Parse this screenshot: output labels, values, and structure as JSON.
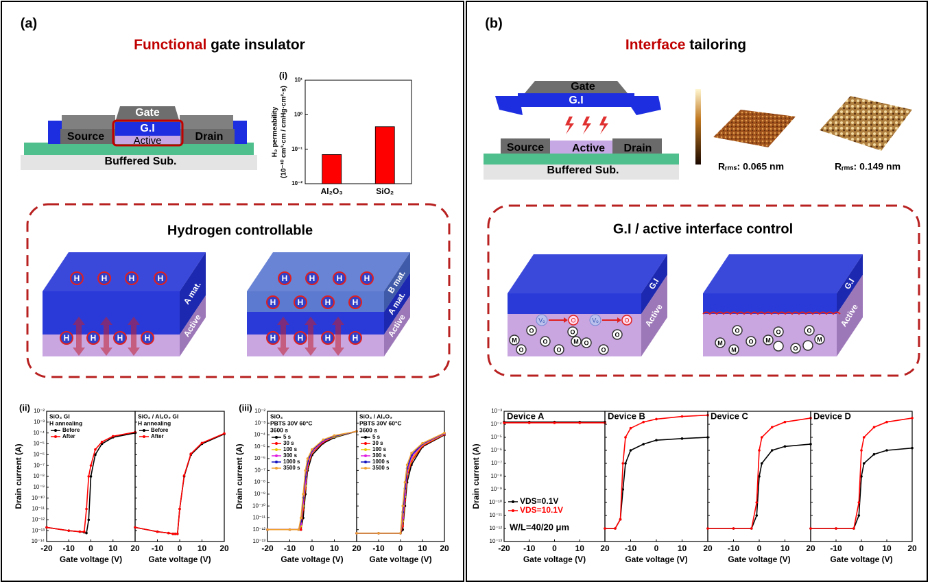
{
  "panel_a": {
    "label": "(a)",
    "title_highlight": "Functional",
    "title_rest": " gate insulator",
    "device": {
      "gate": "Gate",
      "gi": "G.I",
      "source": "Source",
      "active": "Active",
      "drain": "Drain",
      "substrate": "Buffered Sub."
    },
    "bar_chart": {
      "type": "bar",
      "label": "(i)",
      "ylabel_lines": [
        "H₂ permeability",
        "(10⁻¹⁰ cm³·cm / cmHg·cm²·s)"
      ],
      "categories": [
        "Al₂O₃",
        "SiO₂"
      ],
      "values": [
        0.07,
        0.45
      ],
      "color": "#ff0000",
      "log_y": true,
      "ylim": [
        0.01,
        10
      ],
      "yticks": [
        {
          "value": 0.01,
          "label": "10⁻²"
        },
        {
          "value": 0.1,
          "label": "10⁻¹"
        },
        {
          "value": 1,
          "label": "10⁰"
        },
        {
          "value": 10,
          "label": "10¹"
        }
      ]
    },
    "box": {
      "title": "Hydrogen controllable",
      "h": "H",
      "a_mat": "A mat.",
      "b_mat": "B mat.",
      "active": "Active"
    },
    "charts": [
      {
        "type": "line",
        "label": "(ii)",
        "ylabel": "Drain current (A)",
        "xlabel": "Gate voltage (V)",
        "log_y": true,
        "xlim": [
          -20,
          20
        ],
        "xticks": [
          -20,
          -10,
          0,
          10,
          20
        ],
        "ylim": [
          1e-14,
          0.01
        ],
        "yticks": [
          {
            "value": 1e-14,
            "label": "10⁻¹⁴"
          },
          {
            "value": 1e-13,
            "label": "10⁻¹³"
          },
          {
            "value": 1e-12,
            "label": "10⁻¹²"
          },
          {
            "value": 1e-11,
            "label": "10⁻¹¹"
          },
          {
            "value": 1e-10,
            "label": "10⁻¹⁰"
          },
          {
            "value": 1e-09,
            "label": "10⁻⁹"
          },
          {
            "value": 1e-08,
            "label": "10⁻⁸"
          },
          {
            "value": 1e-07,
            "label": "10⁻⁷"
          },
          {
            "value": 1e-06,
            "label": "10⁻⁶"
          },
          {
            "value": 1e-05,
            "label": "10⁻⁵"
          },
          {
            "value": 0.0001,
            "label": "10⁻⁴"
          },
          {
            "value": 0.001,
            "label": "10⁻³"
          },
          {
            "value": 0.01,
            "label": "10⁻²"
          }
        ],
        "subplots": [
          {
            "text_lines": [
              "SiO₂ GI",
              "H annealing"
            ],
            "x": [
              -20,
              -10,
              -5,
              -3,
              -2,
              -1,
              0,
              2,
              5,
              10,
              20
            ],
            "series": [
              {
                "name": "Before",
                "color": "#000000",
                "values": [
                  2e-13,
                  1e-13,
                  8e-14,
                  7e-14,
                  6e-14,
                  1e-12,
                  1e-08,
                  1e-06,
                  1e-05,
                  4e-05,
                  0.0001
                ]
              },
              {
                "name": "After",
                "color": "#ff0000",
                "values": [
                  2e-13,
                  1e-13,
                  8e-14,
                  8e-14,
                  1e-11,
                  1e-08,
                  1e-07,
                  3e-06,
                  1.5e-05,
                  5e-05,
                  0.00012
                ]
              }
            ]
          },
          {
            "text_lines": [
              "SiO₂ / Al₂O₃ GI",
              "H annealing"
            ],
            "x": [
              -20,
              -10,
              -5,
              -3,
              -2,
              -1,
              0,
              2,
              5,
              10,
              20
            ],
            "series": [
              {
                "name": "Before",
                "color": "#000000",
                "values": [
                  2e-13,
                  8e-14,
                  6e-14,
                  5e-14,
                  5e-14,
                  5e-14,
                  1e-11,
                  1e-08,
                  1e-06,
                  1e-05,
                  8e-05
                ]
              },
              {
                "name": "After",
                "color": "#ff0000",
                "values": [
                  2e-13,
                  8e-14,
                  6e-14,
                  5e-14,
                  5e-14,
                  5e-14,
                  1e-11,
                  1.2e-08,
                  1.2e-06,
                  1.2e-05,
                  9e-05
                ]
              }
            ]
          }
        ]
      },
      {
        "type": "line",
        "label": "(iii)",
        "ylabel": "Drain current (A)",
        "xlabel": "Gate voltage (V)",
        "log_y": true,
        "xlim": [
          -20,
          20
        ],
        "xticks": [
          -20,
          -10,
          0,
          10,
          20
        ],
        "ylim": [
          1e-13,
          0.01
        ],
        "yticks": [
          {
            "value": 1e-13,
            "label": "10⁻¹³"
          },
          {
            "value": 1e-12,
            "label": "10⁻¹²"
          },
          {
            "value": 1e-11,
            "label": "10⁻¹¹"
          },
          {
            "value": 1e-10,
            "label": "10⁻¹⁰"
          },
          {
            "value": 1e-09,
            "label": "10⁻⁹"
          },
          {
            "value": 1e-08,
            "label": "10⁻⁸"
          },
          {
            "value": 1e-07,
            "label": "10⁻⁷"
          },
          {
            "value": 1e-06,
            "label": "10⁻⁶"
          },
          {
            "value": 1e-05,
            "label": "10⁻⁵"
          },
          {
            "value": 0.0001,
            "label": "10⁻⁴"
          },
          {
            "value": 0.001,
            "label": "10⁻³"
          },
          {
            "value": 0.01,
            "label": "10⁻²"
          }
        ],
        "subplots": [
          {
            "text_lines": [
              "SiO₂",
              "PBTS 30V 60°C",
              "3600 s"
            ],
            "x": [
              -20,
              -10,
              -6,
              -5,
              -4,
              -3,
              -2,
              0,
              5,
              10,
              20
            ],
            "series": [
              {
                "name": "5 s",
                "color": "#000000",
                "values": [
                  1e-12,
                  1e-12,
                  1e-12,
                  1e-12,
                  1e-11,
                  1e-09,
                  1e-07,
                  2e-06,
                  2e-05,
                  6e-05,
                  0.0002
                ]
              },
              {
                "name": "30 s",
                "color": "#ff0000",
                "values": [
                  1e-12,
                  1e-12,
                  1e-12,
                  1e-12,
                  5e-11,
                  3e-09,
                  2e-07,
                  3e-06,
                  2.5e-05,
                  7e-05,
                  0.0002
                ]
              },
              {
                "name": "100 s",
                "color": "#e8c800",
                "values": [
                  1e-12,
                  1e-12,
                  1e-12,
                  2e-12,
                  1e-10,
                  5e-09,
                  3e-07,
                  3.5e-06,
                  3e-05,
                  7e-05,
                  0.0002
                ]
              },
              {
                "name": "300 s",
                "color": "#e020e0",
                "values": [
                  1e-12,
                  1e-12,
                  1e-12,
                  3e-12,
                  2e-10,
                  1e-08,
                  4e-07,
                  4e-06,
                  3e-05,
                  8e-05,
                  0.0002
                ]
              },
              {
                "name": "1000 s",
                "color": "#1010c0",
                "values": [
                  1e-12,
                  1e-12,
                  1e-12,
                  5e-12,
                  5e-10,
                  3e-08,
                  6e-07,
                  5e-06,
                  3.5e-05,
                  8e-05,
                  0.0002
                ]
              },
              {
                "name": "3500 s",
                "color": "#f0a030",
                "values": [
                  1e-12,
                  1e-12,
                  1e-12,
                  1e-11,
                  1e-09,
                  1e-07,
                  1e-06,
                  6e-06,
                  4e-05,
                  9e-05,
                  0.0002
                ]
              }
            ]
          },
          {
            "text_lines": [
              "SiO₂ / Al₂O₃",
              "PBTS 30V 60°C",
              "3600 s"
            ],
            "x": [
              -20,
              -10,
              0,
              1,
              2,
              3,
              5,
              10,
              20
            ],
            "series": [
              {
                "name": "5 s",
                "color": "#000000",
                "values": [
                  5e-13,
                  5e-13,
                  5e-13,
                  1e-12,
                  1e-10,
                  1e-08,
                  3e-07,
                  1e-05,
                  0.0001
                ]
              },
              {
                "name": "30 s",
                "color": "#ff0000",
                "values": [
                  5e-13,
                  5e-13,
                  5e-13,
                  2e-12,
                  3e-10,
                  3e-08,
                  6e-07,
                  1.2e-05,
                  0.00011
                ]
              },
              {
                "name": "100 s",
                "color": "#e8c800",
                "values": [
                  5e-13,
                  5e-13,
                  5e-13,
                  5e-12,
                  6e-10,
                  5e-08,
                  9e-07,
                  1.4e-05,
                  0.00012
                ]
              },
              {
                "name": "300 s",
                "color": "#e020e0",
                "values": [
                  5e-13,
                  5e-13,
                  5e-13,
                  1e-11,
                  1e-09,
                  8e-08,
                  1.3e-06,
                  1.6e-05,
                  0.00013
                ]
              },
              {
                "name": "1000 s",
                "color": "#1010c0",
                "values": [
                  5e-13,
                  5e-13,
                  5e-13,
                  3e-11,
                  3e-09,
                  1.5e-07,
                  2e-06,
                  1.8e-05,
                  0.00014
                ]
              },
              {
                "name": "3500 s",
                "color": "#f0a030",
                "values": [
                  5e-13,
                  5e-13,
                  5e-13,
                  1e-10,
                  1e-08,
                  3e-07,
                  3e-06,
                  2e-05,
                  0.00015
                ]
              }
            ]
          }
        ]
      }
    ]
  },
  "panel_b": {
    "label": "(b)",
    "title_highlight": "Interface",
    "title_rest": " tailoring",
    "device": {
      "gate": "Gate",
      "gi": "G.I",
      "source": "Source",
      "active": "Active",
      "drain": "Drain",
      "substrate": "Buffered Sub."
    },
    "afm": [
      "Rᵣₘₛ: 0.065 nm",
      "Rᵣₘₛ: 0.149 nm"
    ],
    "box": {
      "title": "G.I / active interface control",
      "gi": "G.I",
      "active": "Active",
      "o": "O",
      "m": "M",
      "vo": "Vₒ"
    },
    "chart": {
      "type": "line",
      "ylabel": "Drain current (A)",
      "xlabel": "Gate voltage (V)",
      "log_y": true,
      "annotation": "W/L=40/20 μm",
      "xlim": [
        -20,
        20
      ],
      "xticks": [
        -20,
        -10,
        0,
        10,
        20
      ],
      "ylim": [
        1e-13,
        0.001
      ],
      "yticks": [
        {
          "value": 1e-13,
          "label": "10⁻¹³"
        },
        {
          "value": 1e-12,
          "label": "10⁻¹²"
        },
        {
          "value": 1e-11,
          "label": "10⁻¹¹"
        },
        {
          "value": 1e-10,
          "label": "10⁻¹⁰"
        },
        {
          "value": 1e-09,
          "label": "10⁻⁹"
        },
        {
          "value": 1e-08,
          "label": "10⁻⁸"
        },
        {
          "value": 1e-07,
          "label": "10⁻⁷"
        },
        {
          "value": 1e-06,
          "label": "10⁻⁶"
        },
        {
          "value": 1e-05,
          "label": "10⁻⁵"
        },
        {
          "value": 0.0001,
          "label": "10⁻⁴"
        },
        {
          "value": 0.001,
          "label": "10⁻³"
        }
      ],
      "subplots": [
        {
          "text_lines": [
            "Device A"
          ],
          "x": [
            -20,
            -10,
            0,
            10,
            20
          ],
          "series": [
            {
              "name": "VDS=0.1V",
              "color": "#000000",
              "values": [
                0.00015,
                0.00015,
                0.00015,
                0.00015,
                0.00015
              ]
            },
            {
              "name": "VDS=10.1V",
              "color": "#ff0000",
              "values": [
                0.00013,
                0.00013,
                0.00013,
                0.00013,
                0.00013
              ]
            }
          ]
        },
        {
          "text_lines": [
            "Device B"
          ],
          "x": [
            -20,
            -16,
            -14,
            -13,
            -12,
            -10,
            -5,
            0,
            10,
            20
          ],
          "series": [
            {
              "color": "#000000",
              "values": [
                1e-12,
                1e-12,
                5e-12,
                1e-09,
                1e-07,
                1e-06,
                3e-06,
                6e-06,
                8e-06,
                1e-05
              ]
            },
            {
              "color": "#ff0000",
              "values": [
                1e-12,
                1e-12,
                5e-12,
                1e-07,
                1e-05,
                5e-05,
                0.00015,
                0.00025,
                0.0004,
                0.0005
              ]
            }
          ]
        },
        {
          "text_lines": [
            "Device C"
          ],
          "x": [
            -20,
            -10,
            -3,
            -1,
            0,
            1,
            5,
            10,
            20
          ],
          "series": [
            {
              "color": "#000000",
              "values": [
                1e-12,
                1e-12,
                1e-12,
                1e-11,
                1e-08,
                1e-07,
                1e-06,
                2e-06,
                3e-06
              ]
            },
            {
              "color": "#ff0000",
              "values": [
                1e-12,
                1e-12,
                1e-12,
                1e-10,
                1e-06,
                1e-05,
                6e-05,
                0.00015,
                0.0003
              ]
            }
          ]
        },
        {
          "text_lines": [
            "Device D"
          ],
          "x": [
            -20,
            -10,
            -3,
            -1,
            0,
            1,
            5,
            10,
            20
          ],
          "series": [
            {
              "color": "#000000",
              "values": [
                1e-12,
                1e-12,
                1e-12,
                1e-11,
                1e-08,
                1e-07,
                5e-07,
                1e-06,
                1.5e-06
              ]
            },
            {
              "color": "#ff0000",
              "values": [
                1e-12,
                1e-12,
                1e-12,
                1e-10,
                1e-06,
                1e-05,
                6e-05,
                0.00015,
                0.0003
              ]
            }
          ]
        }
      ]
    }
  }
}
